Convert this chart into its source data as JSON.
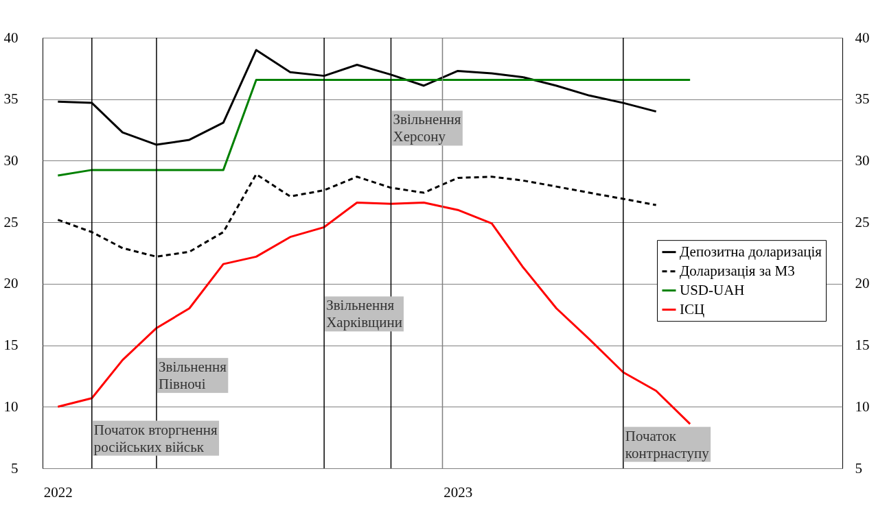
{
  "chart_data": {
    "type": "line",
    "x": [
      "2022-01-15",
      "2022-02-15",
      "2022-03-15",
      "2022-04-15",
      "2022-05-15",
      "2022-06-15",
      "2022-07-15",
      "2022-08-15",
      "2022-09-15",
      "2022-10-15",
      "2022-11-15",
      "2022-12-15",
      "2023-01-15",
      "2023-02-15",
      "2023-03-15",
      "2023-04-15",
      "2023-05-15",
      "2023-06-15",
      "2023-07-15",
      "2023-08-15"
    ],
    "series": [
      {
        "name": "Депозитна доларизація",
        "color": "#000000",
        "line_style": "solid",
        "values": [
          34.8,
          34.7,
          32.3,
          31.3,
          31.7,
          33.1,
          39.0,
          37.2,
          36.9,
          37.8,
          37.0,
          36.1,
          37.3,
          37.1,
          36.8,
          36.1,
          35.3,
          34.7,
          34.0,
          null
        ]
      },
      {
        "name": "Доларизація за М3",
        "color": "#000000",
        "line_style": "dashed",
        "values": [
          25.2,
          24.2,
          22.9,
          22.2,
          22.6,
          24.2,
          28.9,
          27.1,
          27.6,
          28.7,
          27.8,
          27.4,
          28.6,
          28.7,
          28.4,
          27.9,
          27.4,
          26.9,
          26.4,
          null
        ]
      },
      {
        "name": "USD-UAH",
        "color": "#008000",
        "line_style": "solid",
        "values": [
          28.8,
          29.25,
          29.25,
          29.25,
          29.25,
          29.25,
          36.57,
          36.57,
          36.57,
          36.57,
          36.57,
          36.57,
          36.57,
          36.57,
          36.57,
          36.57,
          36.57,
          36.57,
          36.57,
          36.57
        ]
      },
      {
        "name": "ІСЦ",
        "color": "#ff0000",
        "line_style": "solid",
        "values": [
          10.0,
          10.7,
          13.8,
          16.4,
          18.0,
          21.6,
          22.2,
          23.8,
          24.6,
          26.6,
          26.5,
          26.6,
          26.0,
          24.9,
          21.4,
          18.0,
          15.5,
          12.8,
          11.3,
          8.6
        ]
      }
    ],
    "xlim": [
      "2022-01-01",
      "2024-01-01"
    ],
    "xticks": [
      {
        "value": "2022-01-15",
        "label": "2022"
      },
      {
        "value": "2023-01-15",
        "label": "2023"
      }
    ],
    "ylim": [
      5,
      40
    ],
    "yticks": [
      5,
      10,
      15,
      20,
      25,
      30,
      35,
      40
    ],
    "y2lim": [
      5,
      40
    ],
    "y2ticks": [
      5,
      10,
      15,
      20,
      25,
      30,
      35,
      40
    ],
    "grid": "y",
    "legend": "right",
    "marker": "none",
    "ref_lines": [
      {
        "axis": "x",
        "value": "2022-02-15",
        "color": "#000000"
      },
      {
        "axis": "x",
        "value": "2022-04-15",
        "color": "#000000"
      },
      {
        "axis": "x",
        "value": "2022-09-15",
        "color": "#000000"
      },
      {
        "axis": "x",
        "value": "2022-11-15",
        "color": "#000000"
      },
      {
        "axis": "x",
        "value": "2023-01-01",
        "color": "#808080"
      },
      {
        "axis": "x",
        "value": "2023-06-15",
        "color": "#000000"
      }
    ],
    "annotations": [
      {
        "text": "Початок вторгнення\nросійських військ",
        "x": "2022-02-15",
        "y": 8.7
      },
      {
        "text": "Звільнення\nПівночі",
        "x": "2022-04-15",
        "y": 13.8
      },
      {
        "text": "Звільнення\nХарківщини",
        "x": "2022-09-15",
        "y": 18.8
      },
      {
        "text": "Звільнення\nХерсону",
        "x": "2022-11-15",
        "y": 33.9
      },
      {
        "text": "Початок\nконтрнаступу",
        "x": "2023-06-15",
        "y": 8.2
      }
    ]
  }
}
